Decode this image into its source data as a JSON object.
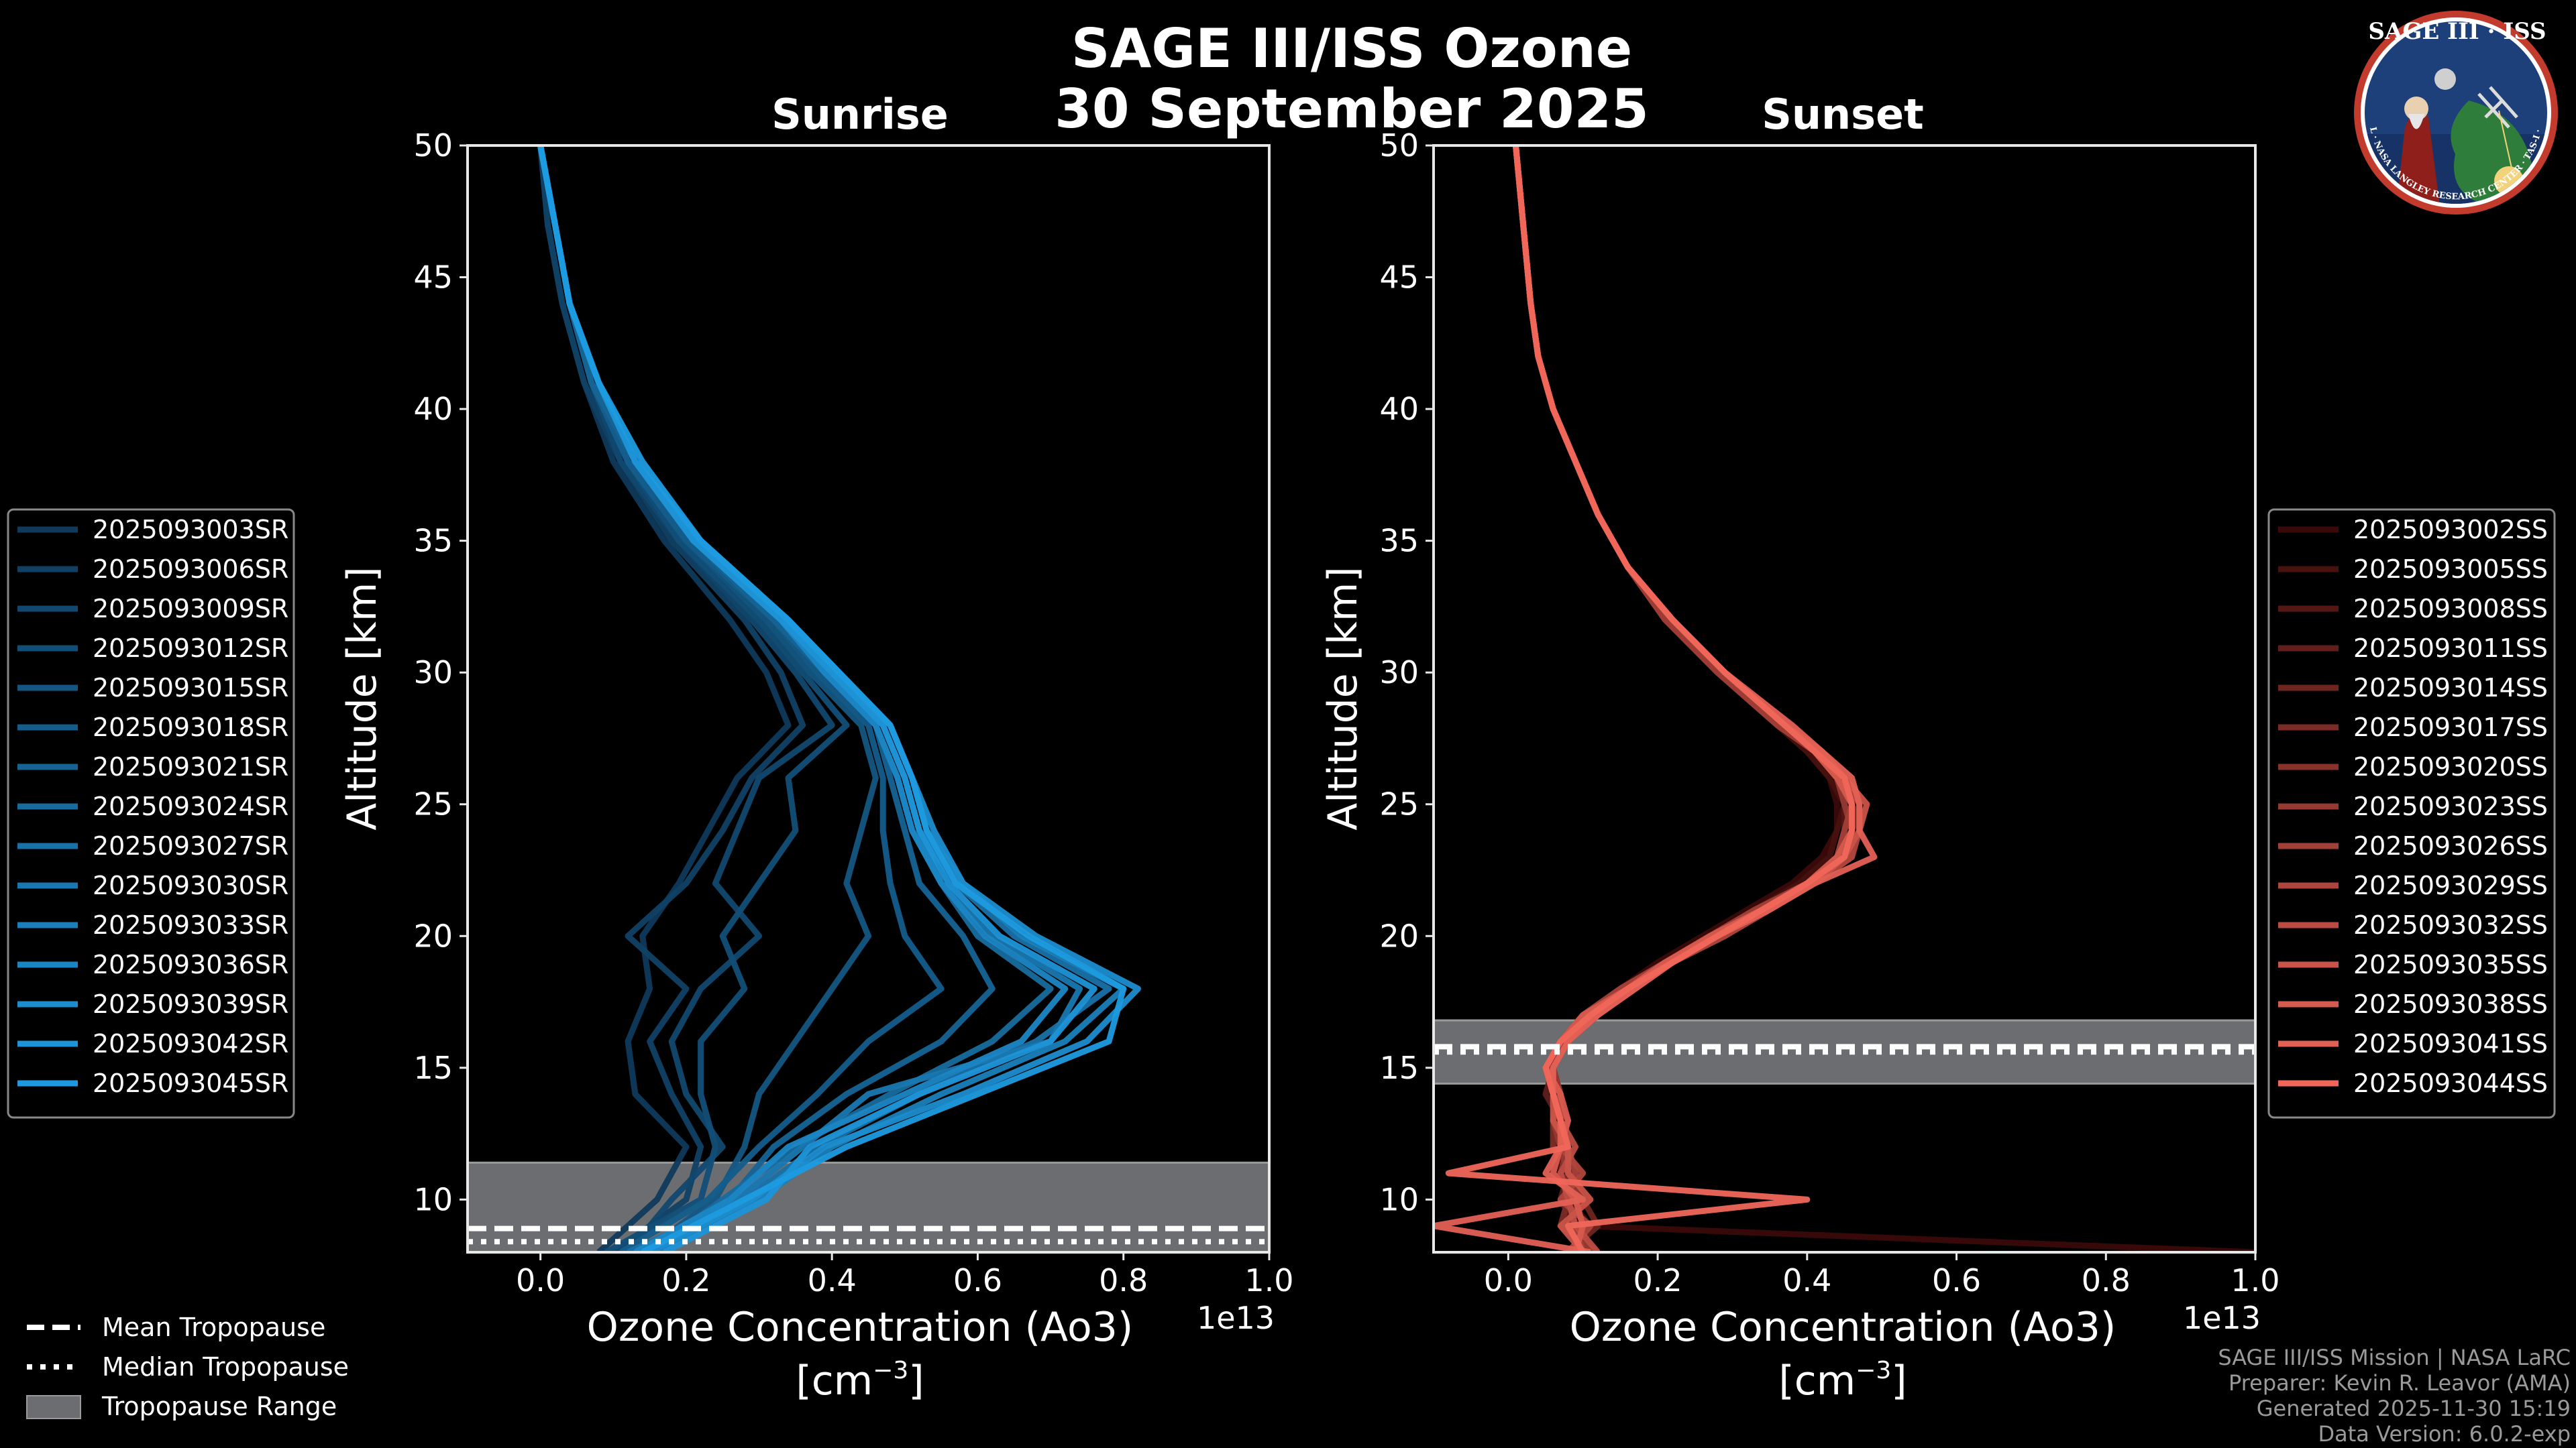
{
  "title_line1": "SAGE III/ISS Ozone",
  "title_line2": "30 September 2025",
  "logo": {
    "text": "SAGE III · ISS",
    "ring_text": "BALL · NASA LANGLEY RESEARCH CENTER · TAS-I · ESA"
  },
  "tropopause_legend": [
    "Mean Tropopause",
    "Median Tropopause",
    "Tropopause Range"
  ],
  "credits": [
    "SAGE III/ISS Mission | NASA LaRC",
    "Preparer: Kevin R. Leavor (AMA)",
    "Generated 2025-11-30 15:19",
    "Data Version: 6.0.2-exp"
  ],
  "chart_data": [
    {
      "type": "line",
      "title": "Sunrise",
      "xlabel": "Ozone Concentration (Ao3)",
      "xunit": "[cm-3]",
      "offset_label": "1e13",
      "ylabel": "Altitude [km]",
      "xlim": [
        -0.1,
        1.0
      ],
      "ylim": [
        8,
        50
      ],
      "xticks": [
        "0.0",
        "0.2",
        "0.4",
        "0.6",
        "0.8",
        "1.0"
      ],
      "yticks": [
        "10",
        "15",
        "20",
        "25",
        "30",
        "35",
        "40",
        "45",
        "50"
      ],
      "color_dark": "#0f3a5c",
      "color_light": "#1e9be0",
      "tropopause": {
        "mean": 8.9,
        "median": 8.4,
        "range": [
          8.0,
          11.4
        ]
      },
      "altitudes": [
        8,
        10,
        12,
        14,
        16,
        18,
        20,
        22,
        24,
        26,
        28,
        30,
        32,
        35,
        38,
        41,
        44,
        47,
        50
      ],
      "series": [
        {
          "name": "2025093003SR",
          "values": [
            0.08,
            0.16,
            0.2,
            0.13,
            0.12,
            0.15,
            0.14,
            0.19,
            0.23,
            0.27,
            0.34,
            0.31,
            0.26,
            0.17,
            0.1,
            0.06,
            0.03,
            0.01,
            0.0
          ]
        },
        {
          "name": "2025093006SR",
          "values": [
            0.1,
            0.2,
            0.22,
            0.18,
            0.15,
            0.2,
            0.12,
            0.2,
            0.25,
            0.29,
            0.36,
            0.33,
            0.28,
            0.18,
            0.11,
            0.06,
            0.03,
            0.01,
            0.0
          ]
        },
        {
          "name": "2025093009SR",
          "values": [
            0.12,
            0.18,
            0.25,
            0.2,
            0.18,
            0.22,
            0.3,
            0.24,
            0.27,
            0.3,
            0.4,
            0.35,
            0.29,
            0.19,
            0.11,
            0.07,
            0.04,
            0.02,
            0.0
          ]
        },
        {
          "name": "2025093012SR",
          "values": [
            0.09,
            0.22,
            0.24,
            0.22,
            0.22,
            0.28,
            0.25,
            0.3,
            0.35,
            0.34,
            0.42,
            0.36,
            0.3,
            0.19,
            0.12,
            0.07,
            0.04,
            0.02,
            0.0
          ]
        },
        {
          "name": "2025093015SR",
          "values": [
            0.14,
            0.24,
            0.28,
            0.3,
            0.35,
            0.4,
            0.45,
            0.42,
            0.44,
            0.46,
            0.44,
            0.37,
            0.31,
            0.2,
            0.12,
            0.07,
            0.04,
            0.02,
            0.0
          ]
        },
        {
          "name": "2025093018SR",
          "values": [
            0.11,
            0.23,
            0.3,
            0.38,
            0.45,
            0.55,
            0.5,
            0.48,
            0.47,
            0.47,
            0.45,
            0.38,
            0.32,
            0.2,
            0.12,
            0.07,
            0.04,
            0.02,
            0.0
          ]
        },
        {
          "name": "2025093021SR",
          "values": [
            0.13,
            0.26,
            0.32,
            0.42,
            0.55,
            0.62,
            0.58,
            0.52,
            0.5,
            0.48,
            0.46,
            0.39,
            0.32,
            0.21,
            0.13,
            0.07,
            0.04,
            0.02,
            0.0
          ]
        },
        {
          "name": "2025093024SR",
          "values": [
            0.15,
            0.25,
            0.35,
            0.48,
            0.62,
            0.7,
            0.6,
            0.55,
            0.51,
            0.49,
            0.46,
            0.39,
            0.33,
            0.21,
            0.13,
            0.08,
            0.04,
            0.02,
            0.0
          ]
        },
        {
          "name": "2025093027SR",
          "values": [
            0.12,
            0.28,
            0.38,
            0.52,
            0.68,
            0.78,
            0.65,
            0.57,
            0.52,
            0.5,
            0.47,
            0.4,
            0.33,
            0.21,
            0.13,
            0.08,
            0.04,
            0.02,
            0.0
          ]
        },
        {
          "name": "2025093030SR",
          "values": [
            0.14,
            0.27,
            0.36,
            0.45,
            0.7,
            0.74,
            0.62,
            0.55,
            0.52,
            0.5,
            0.47,
            0.4,
            0.33,
            0.21,
            0.13,
            0.08,
            0.04,
            0.02,
            0.0
          ]
        },
        {
          "name": "2025093033SR",
          "values": [
            0.16,
            0.3,
            0.4,
            0.55,
            0.72,
            0.8,
            0.66,
            0.58,
            0.53,
            0.51,
            0.48,
            0.41,
            0.34,
            0.22,
            0.13,
            0.08,
            0.04,
            0.02,
            0.0
          ]
        },
        {
          "name": "2025093036SR",
          "values": [
            0.13,
            0.26,
            0.34,
            0.5,
            0.66,
            0.72,
            0.61,
            0.55,
            0.51,
            0.49,
            0.46,
            0.39,
            0.33,
            0.21,
            0.13,
            0.08,
            0.04,
            0.02,
            0.0
          ]
        },
        {
          "name": "2025093039SR",
          "values": [
            0.15,
            0.29,
            0.39,
            0.58,
            0.75,
            0.82,
            0.68,
            0.58,
            0.54,
            0.51,
            0.48,
            0.41,
            0.34,
            0.22,
            0.13,
            0.08,
            0.04,
            0.02,
            0.0
          ]
        },
        {
          "name": "2025093042SR",
          "values": [
            0.17,
            0.31,
            0.37,
            0.52,
            0.7,
            0.76,
            0.63,
            0.56,
            0.52,
            0.5,
            0.47,
            0.4,
            0.33,
            0.21,
            0.13,
            0.08,
            0.04,
            0.02,
            0.0
          ]
        },
        {
          "name": "2025093045SR",
          "values": [
            0.14,
            0.28,
            0.42,
            0.6,
            0.78,
            0.8,
            0.67,
            0.57,
            0.53,
            0.51,
            0.48,
            0.41,
            0.34,
            0.22,
            0.14,
            0.08,
            0.04,
            0.02,
            0.0
          ]
        }
      ]
    },
    {
      "type": "line",
      "title": "Sunset",
      "xlabel": "Ozone Concentration (Ao3)",
      "xunit": "[cm-3]",
      "offset_label": "1e13",
      "ylabel": "Altitude [km]",
      "xlim": [
        -0.1,
        1.0
      ],
      "ylim": [
        8,
        50
      ],
      "xticks": [
        "0.0",
        "0.2",
        "0.4",
        "0.6",
        "0.8",
        "1.0"
      ],
      "yticks": [
        "10",
        "15",
        "20",
        "25",
        "30",
        "35",
        "40",
        "45",
        "50"
      ],
      "color_dark": "#3a0a08",
      "color_light": "#f0675a",
      "tropopause": {
        "mean": 15.8,
        "median": 15.6,
        "range": [
          14.4,
          16.8
        ]
      },
      "altitudes": [
        8,
        9,
        10,
        11,
        12,
        13,
        14,
        15,
        16,
        17,
        18,
        19,
        20,
        21,
        22,
        23,
        24,
        25,
        26,
        27,
        28,
        30,
        32,
        34,
        36,
        38,
        40,
        42,
        44,
        47,
        50
      ],
      "series": [
        {
          "name": "2025093002SS",
          "values": [
            1.0,
            0.1,
            0.08,
            0.07,
            0.07,
            0.06,
            0.06,
            0.06,
            0.07,
            0.1,
            0.15,
            0.2,
            0.26,
            0.32,
            0.38,
            0.42,
            0.44,
            0.44,
            0.43,
            0.4,
            0.36,
            0.28,
            0.21,
            0.16,
            0.12,
            0.09,
            0.06,
            0.04,
            0.03,
            0.02,
            0.01
          ]
        },
        {
          "name": "2025093005SS",
          "values": [
            0.09,
            0.11,
            0.08,
            0.08,
            0.07,
            0.07,
            0.06,
            0.06,
            0.07,
            0.11,
            0.16,
            0.21,
            0.27,
            0.33,
            0.39,
            0.43,
            0.44,
            0.45,
            0.43,
            0.4,
            0.36,
            0.28,
            0.21,
            0.16,
            0.12,
            0.09,
            0.06,
            0.04,
            0.03,
            0.02,
            0.01
          ]
        },
        {
          "name": "2025093008SS",
          "values": [
            0.1,
            0.08,
            0.09,
            0.07,
            0.08,
            0.06,
            0.07,
            0.05,
            0.08,
            0.1,
            0.15,
            0.21,
            0.27,
            0.33,
            0.4,
            0.44,
            0.45,
            0.45,
            0.44,
            0.41,
            0.37,
            0.29,
            0.22,
            0.16,
            0.12,
            0.09,
            0.06,
            0.04,
            0.03,
            0.02,
            0.01
          ]
        },
        {
          "name": "2025093011SS",
          "values": [
            0.11,
            0.09,
            0.07,
            0.08,
            0.06,
            0.07,
            0.05,
            0.06,
            0.08,
            0.12,
            0.17,
            0.22,
            0.28,
            0.34,
            0.4,
            0.45,
            0.46,
            0.46,
            0.44,
            0.41,
            0.37,
            0.29,
            0.22,
            0.16,
            0.12,
            0.09,
            0.06,
            0.04,
            0.03,
            0.02,
            0.01
          ]
        },
        {
          "name": "2025093014SS",
          "values": [
            0.08,
            0.12,
            0.1,
            0.06,
            0.07,
            0.08,
            0.06,
            0.05,
            0.07,
            0.11,
            0.16,
            0.22,
            0.28,
            0.34,
            0.41,
            0.45,
            0.47,
            0.46,
            0.45,
            0.42,
            0.37,
            0.29,
            0.22,
            0.16,
            0.12,
            0.09,
            0.06,
            0.04,
            0.03,
            0.02,
            0.01
          ]
        },
        {
          "name": "2025093017SS",
          "values": [
            0.12,
            0.07,
            0.08,
            0.09,
            0.06,
            0.06,
            0.07,
            0.06,
            0.08,
            0.12,
            0.16,
            0.22,
            0.28,
            0.35,
            0.41,
            0.46,
            0.46,
            0.47,
            0.45,
            0.42,
            0.37,
            0.29,
            0.22,
            0.16,
            0.12,
            0.09,
            0.06,
            0.04,
            0.03,
            0.02,
            0.01
          ]
        },
        {
          "name": "2025093020SS",
          "values": [
            0.09,
            0.1,
            0.09,
            0.07,
            0.08,
            0.07,
            0.06,
            0.05,
            0.07,
            0.1,
            0.15,
            0.21,
            0.27,
            0.34,
            0.4,
            0.45,
            0.46,
            0.46,
            0.44,
            0.41,
            0.37,
            0.29,
            0.22,
            0.16,
            0.12,
            0.09,
            0.06,
            0.04,
            0.03,
            0.02,
            0.01
          ]
        },
        {
          "name": "2025093023SS",
          "values": [
            0.11,
            0.08,
            0.1,
            0.08,
            0.07,
            0.06,
            0.07,
            0.06,
            0.08,
            0.11,
            0.16,
            0.22,
            0.28,
            0.34,
            0.4,
            0.45,
            0.46,
            0.45,
            0.44,
            0.41,
            0.37,
            0.29,
            0.22,
            0.16,
            0.12,
            0.09,
            0.06,
            0.04,
            0.03,
            0.02,
            0.01
          ]
        },
        {
          "name": "2025093026SS",
          "values": [
            0.1,
            0.09,
            0.08,
            0.09,
            0.08,
            0.07,
            0.06,
            0.05,
            0.07,
            0.1,
            0.15,
            0.21,
            0.27,
            0.33,
            0.4,
            0.44,
            0.45,
            0.46,
            0.44,
            0.41,
            0.36,
            0.28,
            0.21,
            0.16,
            0.12,
            0.09,
            0.06,
            0.04,
            0.03,
            0.02,
            0.01
          ]
        },
        {
          "name": "2025093029SS",
          "values": [
            0.08,
            0.11,
            0.07,
            0.1,
            0.07,
            0.08,
            0.06,
            0.06,
            0.08,
            0.12,
            0.17,
            0.22,
            0.29,
            0.35,
            0.41,
            0.46,
            0.47,
            0.47,
            0.45,
            0.42,
            0.37,
            0.29,
            0.22,
            0.16,
            0.12,
            0.09,
            0.06,
            0.04,
            0.03,
            0.02,
            0.01
          ]
        },
        {
          "name": "2025093032SS",
          "values": [
            0.12,
            0.09,
            0.08,
            0.07,
            0.09,
            0.07,
            0.07,
            0.05,
            0.07,
            0.11,
            0.16,
            0.21,
            0.28,
            0.34,
            0.4,
            0.45,
            0.46,
            0.46,
            0.45,
            0.41,
            0.37,
            0.29,
            0.22,
            0.16,
            0.12,
            0.09,
            0.06,
            0.04,
            0.03,
            0.02,
            0.01
          ]
        },
        {
          "name": "2025093035SS",
          "values": [
            0.1,
            0.07,
            0.11,
            0.08,
            0.08,
            0.06,
            0.06,
            0.06,
            0.08,
            0.11,
            0.16,
            0.22,
            0.28,
            0.34,
            0.41,
            0.45,
            0.47,
            0.48,
            0.45,
            0.42,
            0.37,
            0.29,
            0.22,
            0.16,
            0.12,
            0.09,
            0.06,
            0.04,
            0.03,
            0.02,
            0.01
          ]
        },
        {
          "name": "2025093038SS",
          "values": [
            0.09,
            0.1,
            0.09,
            0.06,
            0.07,
            0.08,
            0.07,
            0.05,
            0.07,
            0.1,
            0.16,
            0.21,
            0.27,
            0.34,
            0.4,
            0.44,
            0.46,
            0.46,
            0.44,
            0.41,
            0.37,
            0.29,
            0.22,
            0.16,
            0.12,
            0.09,
            0.06,
            0.04,
            0.03,
            0.02,
            0.01
          ]
        },
        {
          "name": "2025093041SS",
          "values": [
            0.11,
            -0.1,
            0.1,
            0.05,
            0.07,
            0.07,
            0.06,
            0.06,
            0.08,
            0.12,
            0.17,
            0.22,
            0.28,
            0.35,
            0.41,
            0.49,
            0.47,
            0.47,
            0.46,
            0.42,
            0.38,
            0.29,
            0.22,
            0.16,
            0.12,
            0.09,
            0.06,
            0.04,
            0.03,
            0.02,
            0.01
          ]
        },
        {
          "name": "2025093044SS",
          "values": [
            0.1,
            0.08,
            0.4,
            -0.08,
            0.08,
            0.07,
            0.06,
            0.05,
            0.07,
            0.11,
            0.16,
            0.22,
            0.28,
            0.34,
            0.4,
            0.45,
            0.46,
            0.46,
            0.45,
            0.41,
            0.37,
            0.29,
            0.22,
            0.16,
            0.12,
            0.09,
            0.06,
            0.04,
            0.03,
            0.02,
            0.01
          ]
        }
      ]
    }
  ]
}
